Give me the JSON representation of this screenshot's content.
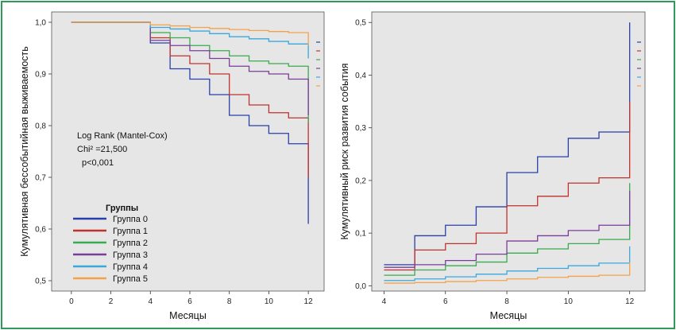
{
  "colors": {
    "frame": "#2e9a5c",
    "plot_bg": "#e6e6e6",
    "groups": [
      "#2b3fa8",
      "#c0332d",
      "#3aab4f",
      "#7b3d9a",
      "#3aa8dd",
      "#f4a24a"
    ]
  },
  "chart_data": [
    {
      "type": "line",
      "step": true,
      "xlabel": "Месяцы",
      "ylabel": "Кумулятивная бессобытийная выживаемость",
      "xlim": [
        -1,
        12.8
      ],
      "ylim": [
        0.48,
        1.02
      ],
      "xticks": [
        "0",
        "2",
        "4",
        "6",
        "8",
        "10",
        "12"
      ],
      "yticks": [
        "0,5",
        "0,6",
        "0,7",
        "0,8",
        "0,9",
        "1,0"
      ],
      "annotation": [
        "Log Rank (Mantel-Cox)",
        "Chi² =21,500",
        "p<0,001"
      ],
      "legend": {
        "title": "Группы",
        "position": "bottom-left",
        "labels": [
          "Группа 0",
          "Группа 1",
          "Группа 2",
          "Группа 3",
          "Группа 4",
          "Группа 5"
        ]
      },
      "series": [
        {
          "name": "Группа 0",
          "x": [
            0,
            4,
            5,
            6,
            7,
            8,
            9,
            10,
            11,
            12
          ],
          "y": [
            1.0,
            0.96,
            0.91,
            0.89,
            0.86,
            0.82,
            0.8,
            0.785,
            0.765,
            0.745
          ],
          "drop_to": 0.61
        },
        {
          "name": "Группа 1",
          "x": [
            0,
            4,
            5,
            6,
            7,
            8,
            9,
            10,
            11,
            12
          ],
          "y": [
            1.0,
            0.97,
            0.935,
            0.92,
            0.9,
            0.86,
            0.84,
            0.825,
            0.815,
            0.815
          ],
          "drop_to": 0.7
        },
        {
          "name": "Группа 2",
          "x": [
            0,
            4,
            5,
            6,
            7,
            8,
            9,
            10,
            11,
            12
          ],
          "y": [
            1.0,
            0.98,
            0.97,
            0.955,
            0.945,
            0.935,
            0.925,
            0.92,
            0.915,
            0.915
          ],
          "drop_to": 0.805
        },
        {
          "name": "Группа 3",
          "x": [
            0,
            4,
            5,
            6,
            7,
            8,
            9,
            10,
            11,
            12
          ],
          "y": [
            1.0,
            0.965,
            0.955,
            0.945,
            0.93,
            0.915,
            0.905,
            0.9,
            0.89,
            0.89
          ],
          "drop_to": 0.82
        },
        {
          "name": "Группа 4",
          "x": [
            0,
            4,
            5,
            6,
            7,
            8,
            9,
            10,
            11,
            12
          ],
          "y": [
            1.0,
            0.99,
            0.987,
            0.983,
            0.978,
            0.972,
            0.968,
            0.963,
            0.958,
            0.957
          ],
          "drop_to": 0.93
        },
        {
          "name": "Группа 5",
          "x": [
            0,
            4,
            5,
            6,
            7,
            8,
            9,
            10,
            11,
            12
          ],
          "y": [
            1.0,
            0.995,
            0.993,
            0.99,
            0.988,
            0.986,
            0.984,
            0.982,
            0.98,
            0.978
          ],
          "drop_to": 0.955
        }
      ]
    },
    {
      "type": "line",
      "step": true,
      "xlabel": "Месяцы",
      "ylabel": "Кумулятивный риск развития события",
      "xlim": [
        3.6,
        12.5
      ],
      "ylim": [
        -0.01,
        0.52
      ],
      "xticks": [
        "4",
        "6",
        "8",
        "10",
        "12"
      ],
      "yticks": [
        "0,0",
        "0,1",
        "0,2",
        "0,3",
        "0,4",
        "0,5"
      ],
      "series": [
        {
          "name": "Группа 0",
          "x": [
            4,
            5,
            6,
            7,
            8,
            9,
            10,
            11,
            12
          ],
          "y": [
            0.04,
            0.095,
            0.115,
            0.15,
            0.215,
            0.245,
            0.28,
            0.292,
            0.292
          ],
          "rise_to": 0.5
        },
        {
          "name": "Группа 1",
          "x": [
            4,
            5,
            6,
            7,
            8,
            9,
            10,
            11,
            12
          ],
          "y": [
            0.03,
            0.068,
            0.08,
            0.1,
            0.152,
            0.17,
            0.195,
            0.205,
            0.205
          ],
          "rise_to": 0.35
        },
        {
          "name": "Группа 2",
          "x": [
            4,
            5,
            6,
            7,
            8,
            9,
            10,
            11,
            12
          ],
          "y": [
            0.02,
            0.03,
            0.038,
            0.045,
            0.062,
            0.07,
            0.08,
            0.088,
            0.088
          ],
          "rise_to": 0.195
        },
        {
          "name": "Группа 3",
          "x": [
            4,
            5,
            6,
            7,
            8,
            9,
            10,
            11,
            12
          ],
          "y": [
            0.035,
            0.04,
            0.048,
            0.06,
            0.085,
            0.095,
            0.105,
            0.115,
            0.115
          ],
          "rise_to": 0.18
        },
        {
          "name": "Группа 4",
          "x": [
            4,
            5,
            6,
            7,
            8,
            9,
            10,
            11,
            12
          ],
          "y": [
            0.01,
            0.013,
            0.017,
            0.022,
            0.028,
            0.033,
            0.038,
            0.043,
            0.043
          ],
          "rise_to": 0.075
        },
        {
          "name": "Группа 5",
          "x": [
            4,
            5,
            6,
            7,
            8,
            9,
            10,
            11,
            12
          ],
          "y": [
            0.005,
            0.006,
            0.008,
            0.01,
            0.013,
            0.016,
            0.018,
            0.02,
            0.02
          ],
          "rise_to": 0.045
        }
      ]
    }
  ]
}
